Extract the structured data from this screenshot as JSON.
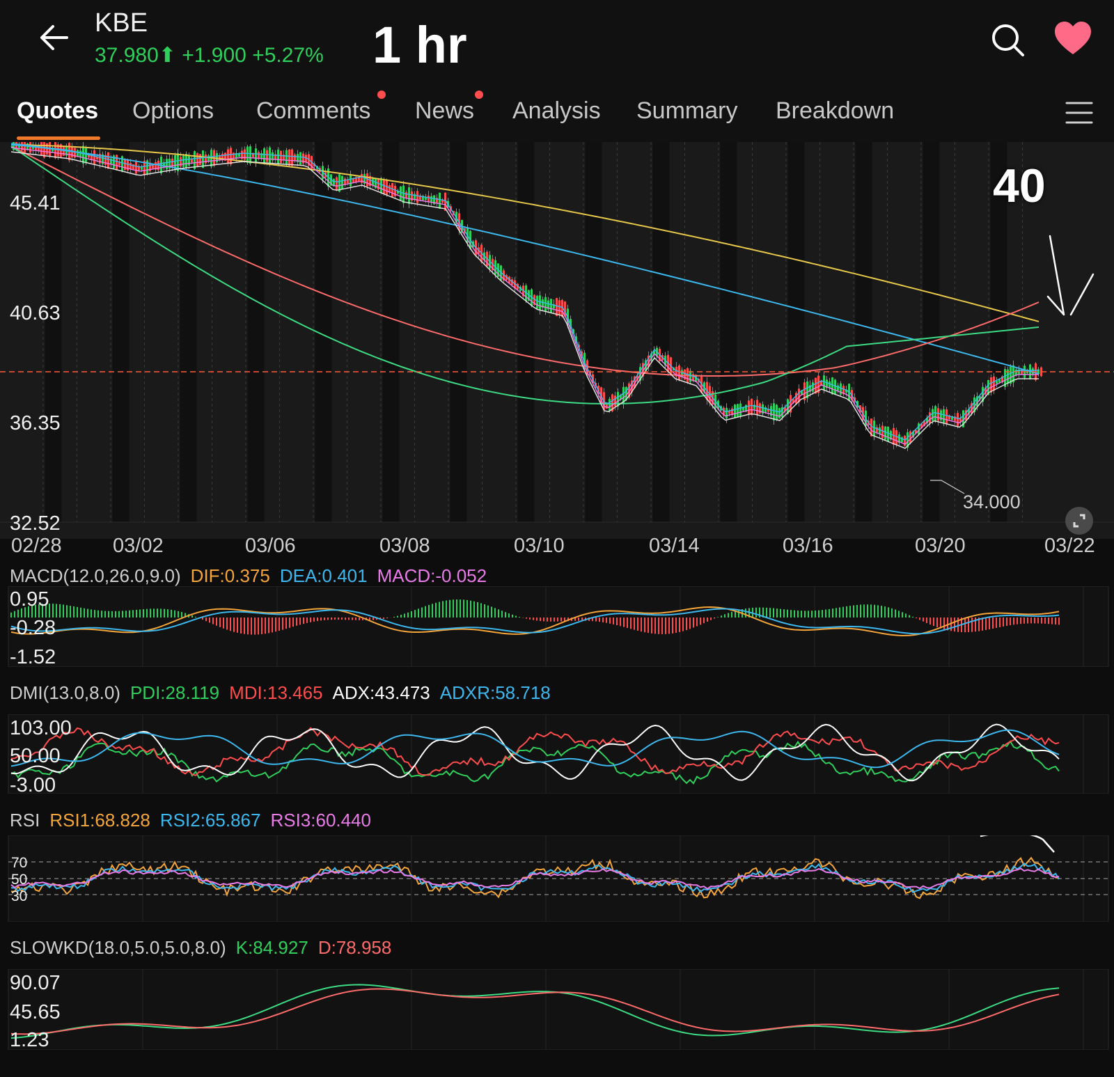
{
  "header": {
    "ticker": "KBE",
    "price": "37.980",
    "change": "+1.900",
    "change_pct": "+5.27%",
    "timeframe": "1 hr",
    "overlay_value": "40",
    "up_color": "#2fcf5b",
    "heart_color": "#ff6b86"
  },
  "tabs": [
    {
      "label": "Quotes",
      "active": true
    },
    {
      "label": "Options"
    },
    {
      "label": "Comments",
      "dot": true
    },
    {
      "label": "News",
      "dot": true
    },
    {
      "label": "Analysis"
    },
    {
      "label": "Summary"
    },
    {
      "label": "Breakdown"
    }
  ],
  "main_chart": {
    "y_labels": [
      "45.41",
      "40.63",
      "36.35",
      "32.52"
    ],
    "x_labels": [
      "02/28",
      "03/02",
      "03/06",
      "03/08",
      "03/10",
      "03/14",
      "03/16",
      "03/20",
      "03/22"
    ],
    "low_marker": "34.000",
    "current_line": "37.98"
  },
  "macd": {
    "title": "MACD(12.0,26.0,9.0)",
    "dif": "DIF:0.375",
    "dea": "DEA:0.401",
    "macd": "MACD:-0.052",
    "y_labels": [
      "0.95",
      "-0.28",
      "-1.52"
    ]
  },
  "dmi": {
    "title": "DMI(13.0,8.0)",
    "pdi": "PDI:28.119",
    "mdi": "MDI:13.465",
    "adx": "ADX:43.473",
    "adxr": "ADXR:58.718",
    "y_labels": [
      "103.00",
      "50.00",
      "-3.00"
    ]
  },
  "rsi": {
    "title": "RSI",
    "rsi1": "RSI1:68.828",
    "rsi2": "RSI2:65.867",
    "rsi3": "RSI3:60.440",
    "y_labels": [
      "70",
      "50",
      "30"
    ]
  },
  "slowkd": {
    "title": "SLOWKD(18.0,5.0,5.0,8.0)",
    "k": "K:84.927",
    "d": "D:78.958",
    "y_labels": [
      "90.07",
      "45.65",
      "1.23"
    ]
  },
  "colors": {
    "orange": "#f5a53a",
    "blue": "#3db8ef",
    "pink": "#e87be8",
    "green": "#2fcf5b",
    "red": "#ff4d4d",
    "white": "#ffffff",
    "yellow": "#e8c84a"
  }
}
